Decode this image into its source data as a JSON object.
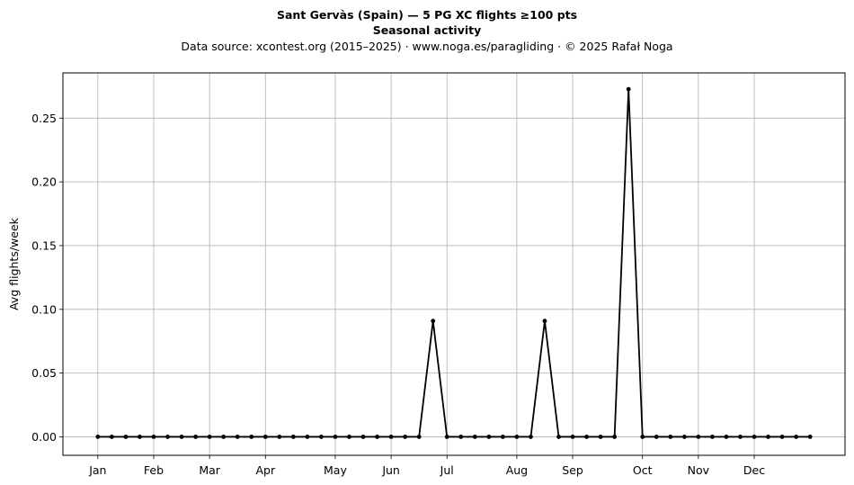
{
  "header": {
    "title": "Sant Gervàs (Spain)  —  5 PG XC flights ≥100 pts",
    "subtitle": "Seasonal activity",
    "source": "Data source: xcontest.org (2015–2025)  ·  www.noga.es/paragliding  ·  © 2025 Rafał Noga"
  },
  "chart_data": {
    "type": "line",
    "ylabel": "Avg flights/week",
    "ylim": [
      -0.0145,
      0.2855
    ],
    "xlim": [
      -2.5,
      53.5
    ],
    "grid": true,
    "line_color": "#000000",
    "grid_color": "#b0b0b0",
    "x": [
      0,
      1,
      2,
      3,
      4,
      5,
      6,
      7,
      8,
      9,
      10,
      11,
      12,
      13,
      14,
      15,
      16,
      17,
      18,
      19,
      20,
      21,
      22,
      23,
      24,
      25,
      26,
      27,
      28,
      29,
      30,
      31,
      32,
      33,
      34,
      35,
      36,
      37,
      38,
      39,
      40,
      41,
      42,
      43,
      44,
      45,
      46,
      47,
      48,
      49,
      50,
      51
    ],
    "values": [
      0,
      0,
      0,
      0,
      0,
      0,
      0,
      0,
      0,
      0,
      0,
      0,
      0,
      0,
      0,
      0,
      0,
      0,
      0,
      0,
      0,
      0,
      0,
      0,
      0.0909,
      0,
      0,
      0,
      0,
      0,
      0,
      0,
      0.0909,
      0,
      0,
      0,
      0,
      0,
      0.2727,
      0,
      0,
      0,
      0,
      0,
      0,
      0,
      0,
      0,
      0,
      0,
      0,
      0
    ],
    "x_ticks": [
      {
        "label": "Jan",
        "x": 0
      },
      {
        "label": "Feb",
        "x": 4
      },
      {
        "label": "Mar",
        "x": 8
      },
      {
        "label": "Apr",
        "x": 12
      },
      {
        "label": "May",
        "x": 17
      },
      {
        "label": "Jun",
        "x": 21
      },
      {
        "label": "Jul",
        "x": 25
      },
      {
        "label": "Aug",
        "x": 30
      },
      {
        "label": "Sep",
        "x": 34
      },
      {
        "label": "Oct",
        "x": 39
      },
      {
        "label": "Nov",
        "x": 43
      },
      {
        "label": "Dec",
        "x": 47
      }
    ],
    "y_ticks": [
      {
        "label": "0.00",
        "value": 0
      },
      {
        "label": "0.05",
        "value": 0.05
      },
      {
        "label": "0.10",
        "value": 0.1
      },
      {
        "label": "0.15",
        "value": 0.15
      },
      {
        "label": "0.20",
        "value": 0.2
      },
      {
        "label": "0.25",
        "value": 0.25
      }
    ]
  }
}
